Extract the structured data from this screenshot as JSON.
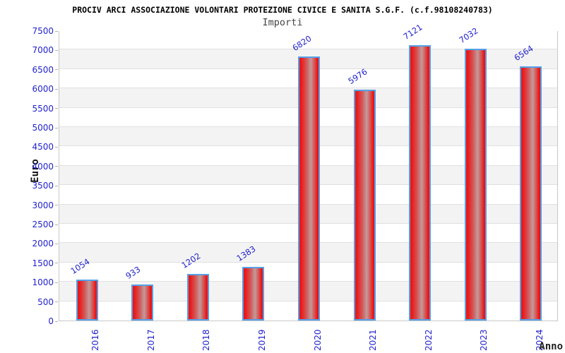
{
  "header": {
    "title": "PROCIV ARCI ASSOCIAZIONE VOLONTARI PROTEZIONE CIVICE E SANITA S.G.F. (c.f.98108240783)",
    "subtitle": "Importi"
  },
  "chart_data": {
    "type": "bar",
    "title": "PROCIV ARCI ASSOCIAZIONE VOLONTARI PROTEZIONE CIVICE E SANITA S.G.F. (c.f.98108240783)",
    "subtitle": "Importi",
    "xlabel": "Anno",
    "ylabel": "Euro",
    "categories": [
      "2016",
      "2017",
      "2018",
      "2019",
      "2020",
      "2021",
      "2022",
      "2023",
      "2024"
    ],
    "values": [
      1054,
      933,
      1202,
      1383,
      6820,
      5976,
      7121,
      7032,
      6564
    ],
    "ylim": [
      0,
      7500
    ],
    "ytick_step": 500,
    "legend": "none",
    "grid": "horizontal stripes every 500, alternating white and light gray",
    "colors": {
      "bar_edge_red": "#ee1010",
      "bar_center_light": "#c39a9a",
      "bar_border_blue": "#55a0e8",
      "axis_text_blue": "#2222cc",
      "stripe_gray": "#f3f3f3",
      "gridline_gray": "#e0e0e0",
      "title_black": "#000000",
      "subtitle_gray": "#444444"
    }
  }
}
